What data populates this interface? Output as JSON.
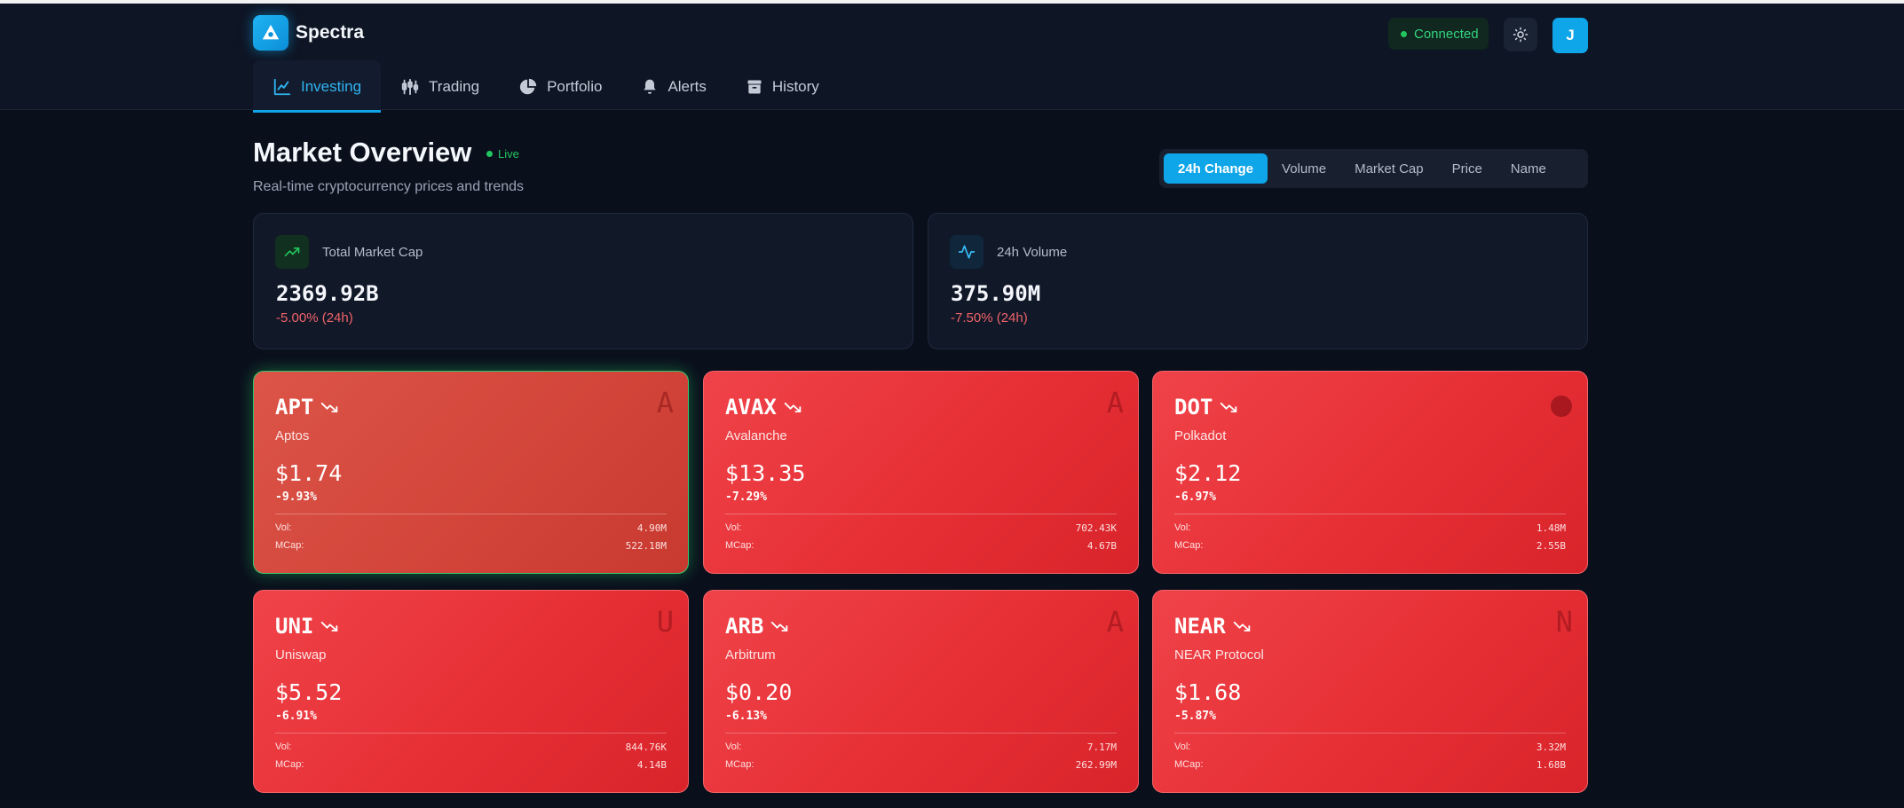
{
  "app": {
    "name": "Spectra"
  },
  "status": {
    "connection": "Connected"
  },
  "user": {
    "initial": "J"
  },
  "nav": {
    "tabs": [
      {
        "label": "Investing",
        "icon": "line-chart-icon",
        "active": true
      },
      {
        "label": "Trading",
        "icon": "candlestick-icon",
        "active": false
      },
      {
        "label": "Portfolio",
        "icon": "pie-chart-icon",
        "active": false
      },
      {
        "label": "Alerts",
        "icon": "bell-icon",
        "active": false
      },
      {
        "label": "History",
        "icon": "archive-icon",
        "active": false
      }
    ]
  },
  "overview": {
    "title": "Market Overview",
    "live_label": "Live",
    "subtitle": "Real-time cryptocurrency prices and trends"
  },
  "sort": {
    "options": [
      "24h Change",
      "Volume",
      "Market Cap",
      "Price",
      "Name"
    ],
    "selected": "24h Change"
  },
  "stats": [
    {
      "label": "Total Market Cap",
      "value": "2369.92B",
      "change": "-5.00% (24h)",
      "icon": "trending-up-icon"
    },
    {
      "label": "24h Volume",
      "value": "375.90M",
      "change": "-7.50% (24h)",
      "icon": "activity-icon"
    }
  ],
  "labels": {
    "vol": "Vol:",
    "mcap": "MCap:"
  },
  "coins": [
    {
      "symbol": "APT",
      "name": "Aptos",
      "price": "$1.74",
      "change": "-9.93%",
      "vol": "4.90M",
      "mcap": "522.18M",
      "logo": "A",
      "selected": true
    },
    {
      "symbol": "AVAX",
      "name": "Avalanche",
      "price": "$13.35",
      "change": "-7.29%",
      "vol": "702.43K",
      "mcap": "4.67B",
      "logo": "A",
      "selected": false
    },
    {
      "symbol": "DOT",
      "name": "Polkadot",
      "price": "$2.12",
      "change": "-6.97%",
      "vol": "1.48M",
      "mcap": "2.55B",
      "logo": "",
      "selected": false
    },
    {
      "symbol": "UNI",
      "name": "Uniswap",
      "price": "$5.52",
      "change": "-6.91%",
      "vol": "844.76K",
      "mcap": "4.14B",
      "logo": "U",
      "selected": false
    },
    {
      "symbol": "ARB",
      "name": "Arbitrum",
      "price": "$0.20",
      "change": "-6.13%",
      "vol": "7.17M",
      "mcap": "262.99M",
      "logo": "A",
      "selected": false
    },
    {
      "symbol": "NEAR",
      "name": "NEAR Protocol",
      "price": "$1.68",
      "change": "-5.87%",
      "vol": "3.32M",
      "mcap": "1.68B",
      "logo": "N",
      "selected": false
    }
  ],
  "colors": {
    "accent": "#0ea5e9",
    "positive": "#22c55e",
    "negative": "#ef4444",
    "background": "#0a0f1c"
  }
}
